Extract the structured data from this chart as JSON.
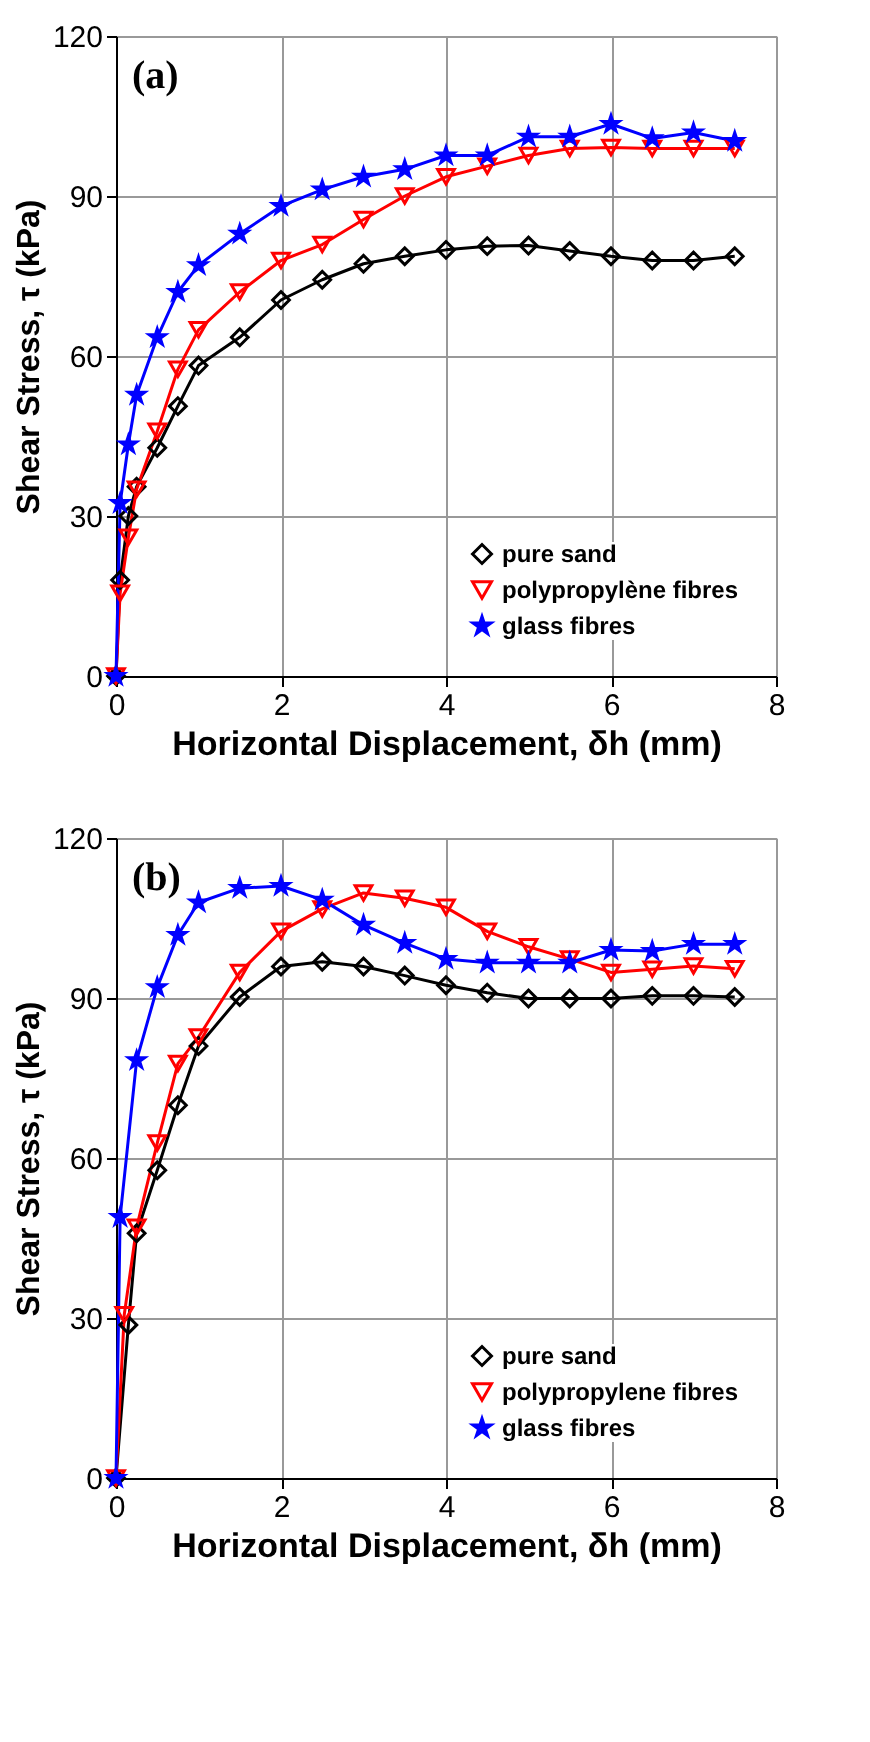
{
  "chart_data": [
    {
      "type": "line",
      "annotations": [
        "(a)"
      ],
      "xlabel": "Horizontal Displacement, δh (mm)",
      "ylabel": "Shear Stress, τ (kPa)",
      "xlim": [
        0,
        8
      ],
      "ylim": [
        0,
        120
      ],
      "xticks": [
        0,
        2,
        4,
        6,
        8
      ],
      "yticks": [
        0,
        30,
        60,
        90,
        120
      ],
      "grid": true,
      "legend": "bottom right",
      "line_style": "solid",
      "series": [
        {
          "name": "pure sand",
          "color": "#000000",
          "marker": "diamond",
          "x": [
            0,
            0.05,
            0.15,
            0.25,
            0.5,
            0.75,
            1,
            1.5,
            2,
            2.5,
            3,
            3.5,
            4,
            4.5,
            5,
            5.5,
            6,
            6.5,
            7,
            7.5
          ],
          "values": [
            0,
            18,
            30,
            35.5,
            42.8,
            50.6,
            58.2,
            63.5,
            70.5,
            74.3,
            77.3,
            78.7,
            79.9,
            80.6,
            80.7,
            79.7,
            78.7,
            77.9,
            77.9,
            78.7
          ]
        },
        {
          "name": "polypropylène fibres",
          "color": "#ff0000",
          "marker": "triangle",
          "x": [
            0,
            0.05,
            0.15,
            0.25,
            0.5,
            0.75,
            1,
            1.5,
            2,
            2.5,
            3,
            3.5,
            4,
            4.5,
            5,
            5.5,
            6,
            6.5,
            7,
            7.5
          ],
          "values": [
            0,
            15.5,
            26,
            35,
            45.9,
            57.5,
            64.9,
            72,
            77.9,
            80.9,
            85.6,
            90,
            93.6,
            95.6,
            97.6,
            98.9,
            99.1,
            98.9,
            98.9,
            98.9
          ]
        },
        {
          "name": "glass fibres",
          "color": "#0000ff",
          "marker": "star",
          "x": [
            0,
            0.05,
            0.15,
            0.25,
            0.5,
            0.75,
            1,
            1.5,
            2,
            2.5,
            3,
            3.5,
            4,
            4.5,
            5,
            5.5,
            6,
            6.5,
            7,
            7.5
          ],
          "values": [
            0,
            32.4,
            43.4,
            52.7,
            63.5,
            72,
            77,
            82.9,
            88.1,
            91.2,
            93.6,
            95,
            97.6,
            97.6,
            101.1,
            101.1,
            103.5,
            100.8,
            101.9,
            100.3
          ]
        }
      ]
    },
    {
      "type": "line",
      "annotations": [
        "(b)"
      ],
      "xlabel": "Horizontal Displacement, δh (mm)",
      "ylabel": "Shear Stress, τ (kPa)",
      "xlim": [
        0,
        8
      ],
      "ylim": [
        0,
        120
      ],
      "xticks": [
        0,
        2,
        4,
        6,
        8
      ],
      "yticks": [
        0,
        30,
        60,
        90,
        120
      ],
      "grid": true,
      "legend": "bottom right",
      "line_style": "solid",
      "series": [
        {
          "name": "pure sand",
          "color": "#000000",
          "marker": "diamond",
          "x": [
            0,
            0.15,
            0.25,
            0.5,
            0.75,
            1,
            1.5,
            2,
            2.5,
            3,
            3.5,
            4,
            4.5,
            5,
            5.5,
            6,
            6.5,
            7,
            7.5
          ],
          "values": [
            0,
            28.7,
            45.9,
            57.7,
            69.9,
            81,
            90.2,
            95.9,
            96.8,
            95.9,
            94.2,
            92.4,
            91,
            89.9,
            89.9,
            89.9,
            90.4,
            90.4,
            90.2
          ]
        },
        {
          "name": "polypropylene fibres",
          "color": "#ff0000",
          "marker": "triangle",
          "x": [
            0,
            0.1,
            0.25,
            0.5,
            0.75,
            1,
            1.5,
            2,
            2.5,
            3,
            3.5,
            4,
            4.5,
            5,
            5.5,
            6,
            6.5,
            7,
            7.5
          ],
          "values": [
            0,
            30.6,
            47,
            62.8,
            77.7,
            82.7,
            94.8,
            102.5,
            106.7,
            109.7,
            108.7,
            107,
            102.5,
            99.6,
            97.3,
            94.8,
            95.4,
            96,
            95.5
          ]
        },
        {
          "name": "glass fibres",
          "color": "#0000ff",
          "marker": "star",
          "x": [
            0,
            0.05,
            0.25,
            0.5,
            0.75,
            1,
            1.5,
            2,
            2.5,
            3,
            3.5,
            4,
            4.5,
            5,
            5.5,
            6,
            6.5,
            7,
            7.5
          ],
          "values": [
            0,
            48.9,
            78.3,
            92,
            101.8,
            107.9,
            110.6,
            111,
            108.4,
            103.7,
            100.3,
            97.3,
            96.6,
            96.6,
            96.6,
            99,
            98.8,
            100.1,
            100.1
          ]
        }
      ]
    }
  ]
}
